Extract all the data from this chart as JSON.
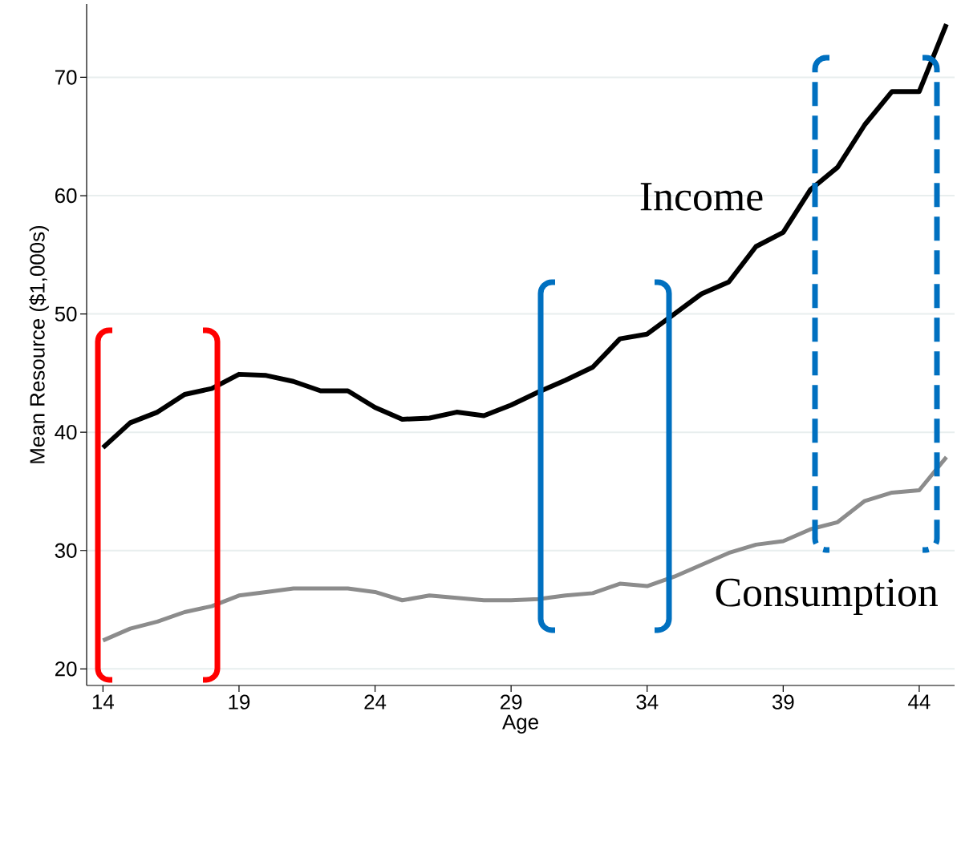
{
  "chart_data": {
    "type": "line",
    "xlabel": "Age",
    "ylabel": "Mean Resource ($1,000s)",
    "x": [
      14,
      15,
      16,
      17,
      18,
      19,
      20,
      21,
      22,
      23,
      24,
      25,
      26,
      27,
      28,
      29,
      30,
      31,
      32,
      33,
      34,
      35,
      36,
      37,
      38,
      39,
      40,
      41,
      42,
      43,
      44,
      45
    ],
    "series": [
      {
        "name": "Income",
        "color": "#000000",
        "values": [
          38.7,
          40.8,
          41.7,
          43.2,
          43.7,
          44.9,
          44.8,
          44.3,
          43.5,
          43.5,
          42.1,
          41.1,
          41.2,
          41.7,
          41.4,
          42.3,
          43.4,
          44.4,
          45.5,
          47.9,
          48.3,
          50.0,
          51.7,
          52.7,
          55.7,
          56.9,
          60.5,
          62.4,
          66.0,
          68.8,
          68.8,
          74.5
        ]
      },
      {
        "name": "Consumption",
        "color": "#8c8c8c",
        "values": [
          22.4,
          23.4,
          24.0,
          24.8,
          25.3,
          26.2,
          26.5,
          26.8,
          26.8,
          26.8,
          26.5,
          25.8,
          26.2,
          26.0,
          25.8,
          25.8,
          25.9,
          26.2,
          26.4,
          27.2,
          27.0,
          27.8,
          28.8,
          29.8,
          30.5,
          30.8,
          31.8,
          32.4,
          34.2,
          34.9,
          35.1,
          37.9
        ]
      }
    ],
    "xlim": [
      13.4,
      45.3
    ],
    "ylim": [
      18.6,
      76.2
    ],
    "xticks": [
      14,
      19,
      24,
      29,
      34,
      39,
      44
    ],
    "yticks": [
      20,
      30,
      40,
      50,
      60,
      70
    ],
    "grid": "y",
    "legend": false,
    "marker": "none",
    "line_style": "solid"
  }
}
